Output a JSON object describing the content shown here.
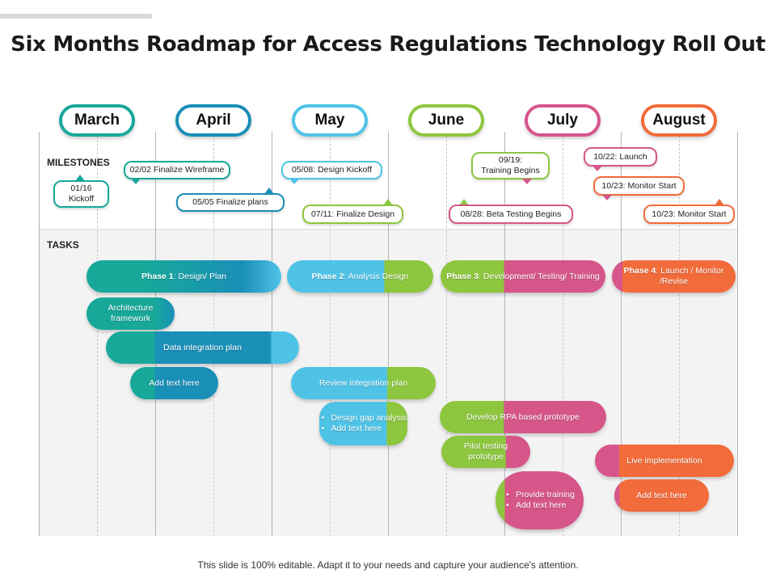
{
  "title": "Six Months Roadmap for Access Regulations Technology Roll Out",
  "months": [
    "March",
    "April",
    "May",
    "June",
    "July",
    "August"
  ],
  "month_colors": [
    "#17a89a",
    "#1a8fb8",
    "#4fc3e6",
    "#8dc63f",
    "#d6568a",
    "#f26b3a"
  ],
  "sections": {
    "milestones": "MILESTONES",
    "tasks": "TASKS"
  },
  "milestones": {
    "m1": "01/16\nKickoff",
    "m2": "02/02 Finalize Wireframe",
    "m3": "05/05 Finalize plans",
    "m4": "05/08: Design Kickoff",
    "m5": "07/11: Finalize Design",
    "m6": "09/19:\nTraining Begins",
    "m7": "08/28: Beta Testing Begins",
    "m8": "10/22: Launch",
    "m9": "10/23: Monitor Start",
    "m10": "10/23: Monitor Start"
  },
  "phases": {
    "p1_bold": "Phase 1",
    "p1_rest": ": Design/ Plan",
    "p2_bold": "Phase 2",
    "p2_rest": ": Analysis Design",
    "p3_bold": "Phase 3",
    "p3_rest": ": Development/ Testing/ Training",
    "p4_bold": "Phase 4",
    "p4_rest": ": Launch / Monitor /Revise"
  },
  "tasks": {
    "t1": "Architecture framework",
    "t2": "Data integration plan",
    "t3": "Add text here",
    "t4": "Review integration plan",
    "t5_items": [
      "Design gap analysis",
      "Add text here"
    ],
    "t6": "Develop RPA  based prototype",
    "t7": "Pilot  testing prototype",
    "t8_items": [
      "Provide training",
      "Add text here"
    ],
    "t9": "Live implementation",
    "t10": "Add text here"
  },
  "footer": "This slide is 100% editable. Adapt it to your needs and capture your audience's attention."
}
